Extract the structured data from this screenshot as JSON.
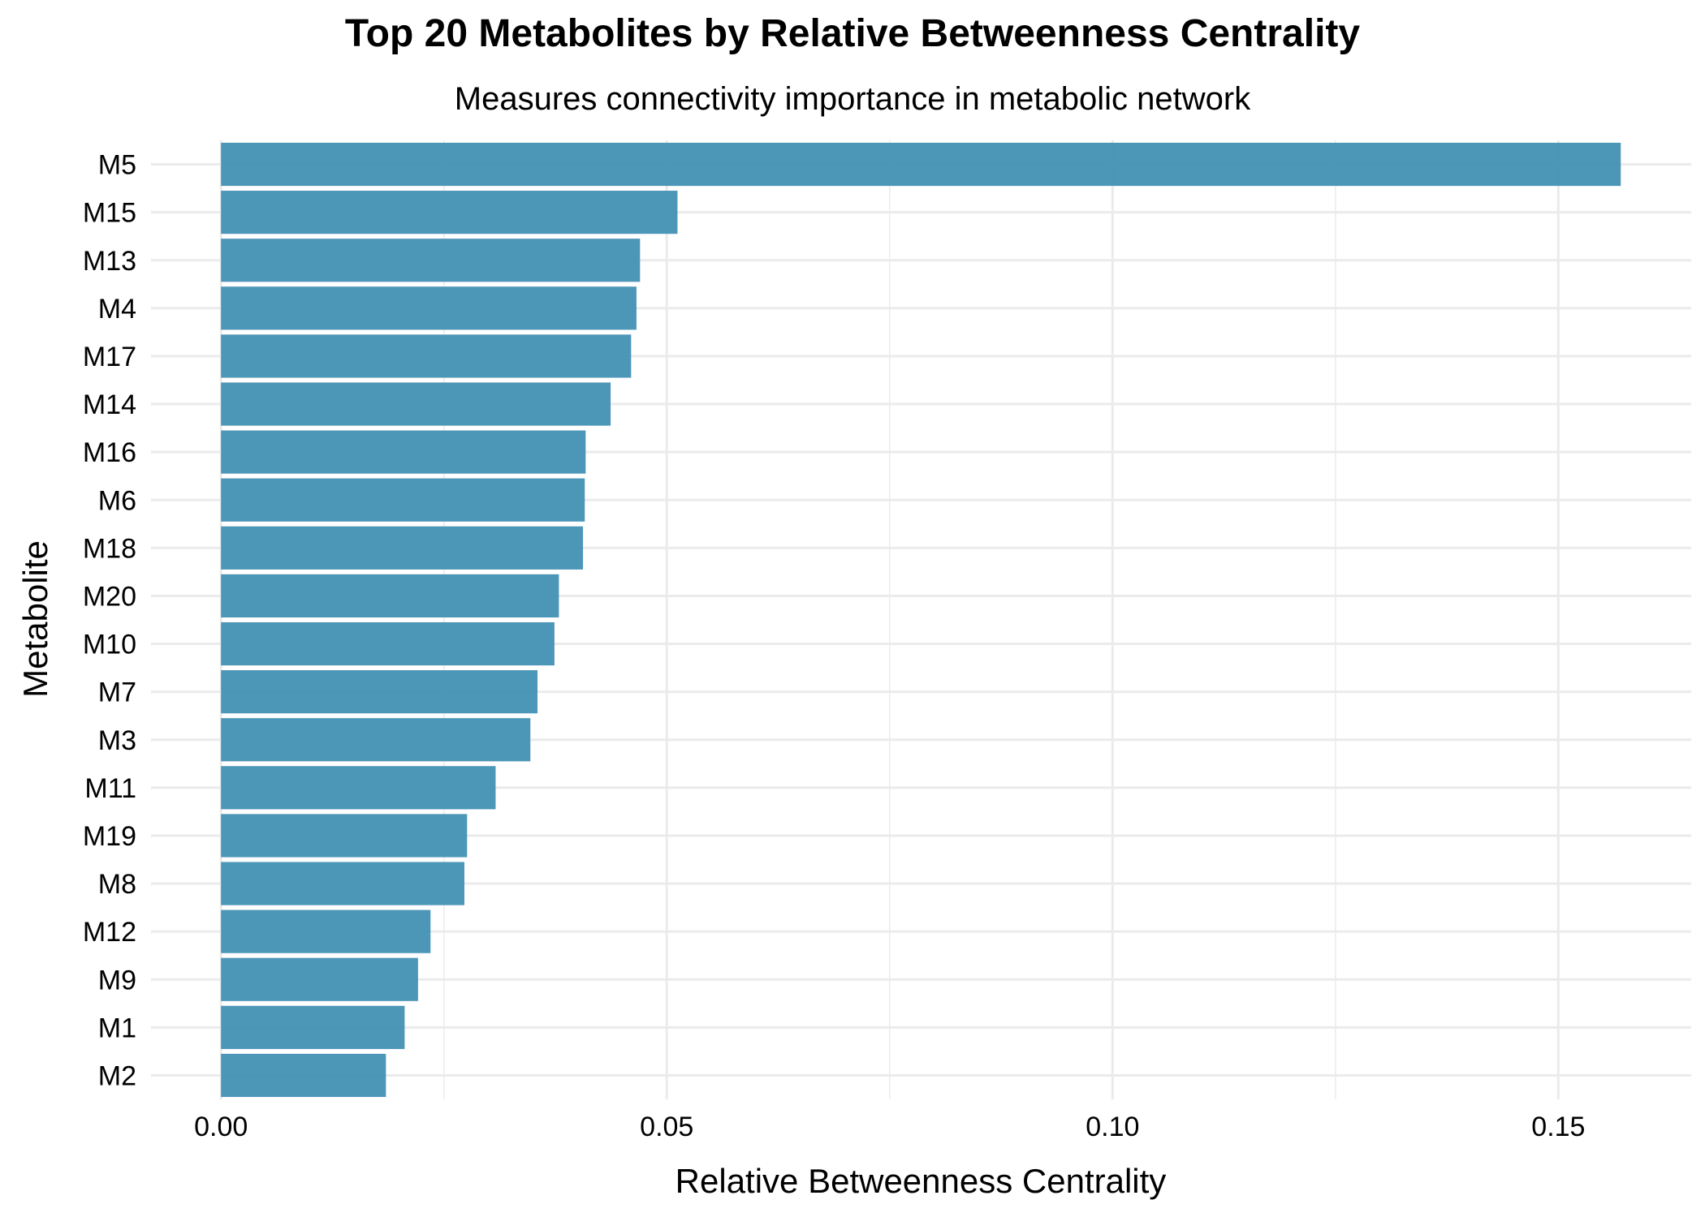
{
  "chart_data": {
    "type": "bar",
    "orientation": "horizontal",
    "title": "Top 20 Metabolites by Relative Betweenness Centrality",
    "subtitle": "Measures connectivity importance in metabolic network",
    "xlabel": "Relative Betweenness Centrality",
    "ylabel": "Metabolite",
    "categories": [
      "M5",
      "M15",
      "M13",
      "M4",
      "M17",
      "M14",
      "M16",
      "M6",
      "M18",
      "M20",
      "M10",
      "M7",
      "M3",
      "M11",
      "M19",
      "M8",
      "M12",
      "M9",
      "M1",
      "M2"
    ],
    "values": [
      0.157,
      0.0512,
      0.047,
      0.0466,
      0.046,
      0.0437,
      0.0409,
      0.0408,
      0.0406,
      0.0379,
      0.0374,
      0.0355,
      0.0347,
      0.0308,
      0.0276,
      0.0273,
      0.0235,
      0.0221,
      0.0206,
      0.0185
    ],
    "xlim": [
      -0.00785,
      0.1649
    ],
    "xticks": [
      0.0,
      0.05,
      0.1,
      0.15
    ],
    "xtick_labels": [
      "0.00",
      "0.05",
      "0.10",
      "0.15"
    ],
    "grid": true,
    "legend": "none",
    "bar_color": "#3d8db2",
    "grid_color": "#ebebeb"
  }
}
